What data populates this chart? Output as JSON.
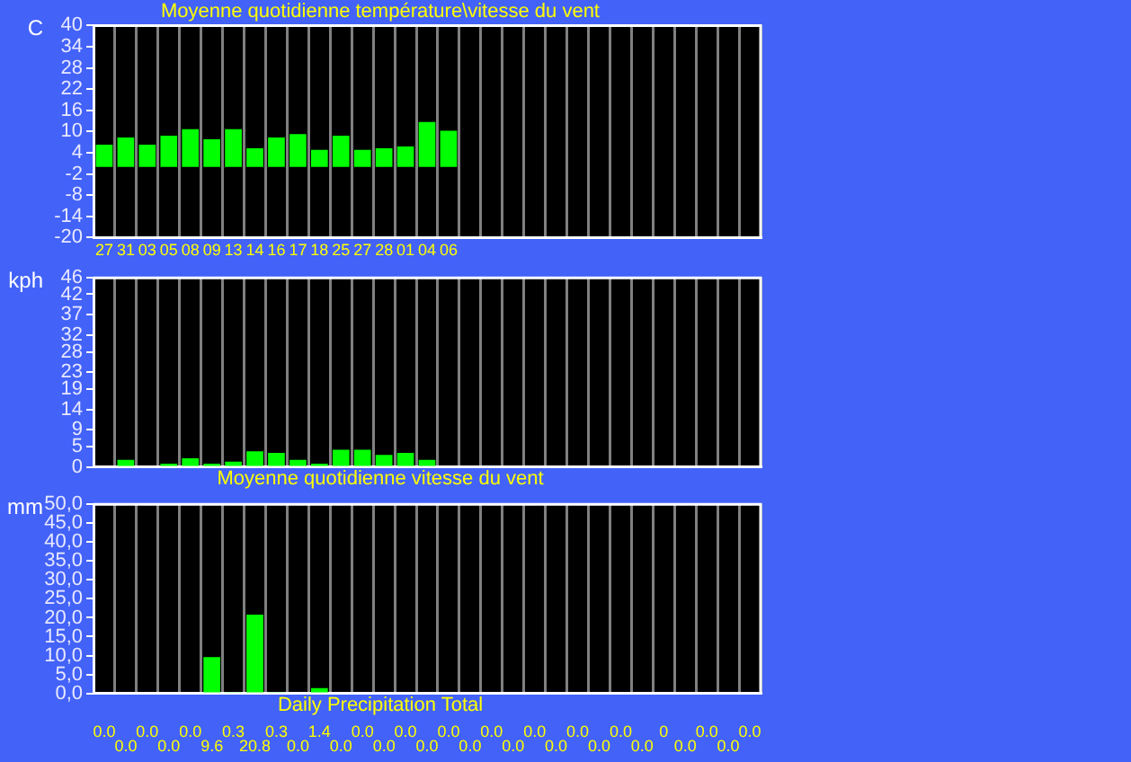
{
  "chart_data": [
    {
      "type": "bar",
      "title": "Moyenne quotidienne température\\vitesse du vent",
      "ylabel": "C",
      "categories": [
        "27",
        "31",
        "03",
        "05",
        "08",
        "09",
        "13",
        "14",
        "16",
        "17",
        "18",
        "25",
        "27",
        "28",
        "01",
        "04",
        "06",
        null,
        null,
        null,
        null,
        null,
        null,
        null,
        null,
        null,
        null,
        null,
        null,
        null,
        null
      ],
      "values": [
        6.3,
        8.3,
        6.3,
        8.8,
        10.7,
        7.8,
        10.7,
        5.3,
        8.3,
        9.3,
        4.8,
        8.8,
        4.8,
        5.3,
        5.8,
        12.7,
        10.2,
        null,
        null,
        null,
        null,
        null,
        null,
        null,
        null,
        null,
        null,
        null,
        null,
        null,
        null
      ],
      "color": "#00ff00",
      "ylim": [
        -20,
        40
      ],
      "yticks": [
        -20,
        -14,
        -8,
        -2,
        4,
        10,
        16,
        22,
        28,
        34,
        40
      ],
      "grid": "x",
      "legend": false
    },
    {
      "type": "bar",
      "title": "Moyenne quotidienne vitesse du vent",
      "ylabel": "kph",
      "categories": [
        null,
        null,
        null,
        null,
        null,
        null,
        null,
        null,
        null,
        null,
        null,
        null,
        null,
        null,
        null,
        null,
        null,
        null,
        null,
        null,
        null,
        null,
        null,
        null,
        null,
        null,
        null,
        null,
        null,
        null,
        null
      ],
      "values": [
        0,
        1.7,
        0,
        0.8,
        2.1,
        0.8,
        1.3,
        3.8,
        3.4,
        1.7,
        0.8,
        4.2,
        4.2,
        2.9,
        3.4,
        1.7,
        0,
        null,
        null,
        null,
        null,
        null,
        null,
        null,
        null,
        null,
        null,
        null,
        null,
        null,
        null
      ],
      "color": "#00ff00",
      "ylim": [
        0,
        46
      ],
      "yticks": [
        0,
        5,
        9,
        14,
        19,
        23,
        28,
        32,
        37,
        42,
        46
      ],
      "grid": "x",
      "legend": false,
      "tick_labels": "y"
    },
    {
      "type": "bar",
      "title": "Daily Precipitation Total",
      "ylabel": "mm",
      "categories": [
        null,
        null,
        null,
        null,
        null,
        null,
        null,
        null,
        null,
        null,
        null,
        null,
        null,
        null,
        null,
        null,
        null,
        null,
        null,
        null,
        null,
        null,
        null,
        null,
        null,
        null,
        null,
        null,
        null,
        null,
        null
      ],
      "values": [
        0,
        0,
        0,
        0,
        0,
        9.6,
        0.3,
        20.8,
        0.3,
        0,
        1.4,
        0,
        0,
        0,
        0,
        0,
        0,
        0,
        0,
        0,
        0,
        0,
        0,
        0,
        0,
        0,
        0,
        0,
        0,
        0,
        0
      ],
      "value_labels": [
        "0.0",
        "0.0",
        "0.0",
        "0.0",
        "0.0",
        "9.6",
        "0.3",
        "20.8",
        "0.3",
        "0.0",
        "1.4",
        "0.0",
        "0.0",
        "0.0",
        "0.0",
        "0.0",
        "0.0",
        "0.0",
        "0.0",
        "0.0",
        "0.0",
        "0.0",
        "0.0",
        "0.0",
        "0.0",
        "0.0",
        "0",
        "0.0",
        "0.0",
        "0.0",
        "0.0"
      ],
      "color": "#00ff00",
      "ylim": [
        0,
        50
      ],
      "yticks": [
        {
          "value": 0,
          "label": "0,0"
        },
        {
          "value": 5,
          "label": "5,0"
        },
        {
          "value": 10,
          "label": "10,0"
        },
        {
          "value": 15,
          "label": "15,0"
        },
        {
          "value": 20,
          "label": "20,0"
        },
        {
          "value": 25,
          "label": "25,0"
        },
        {
          "value": 30,
          "label": "30,0"
        },
        {
          "value": 35,
          "label": "35,0"
        },
        {
          "value": 40,
          "label": "40,0"
        },
        {
          "value": 45,
          "label": "45,0"
        },
        {
          "value": 50,
          "label": "50,0"
        }
      ],
      "grid": "x",
      "legend": false,
      "tick_labels": "y"
    }
  ]
}
